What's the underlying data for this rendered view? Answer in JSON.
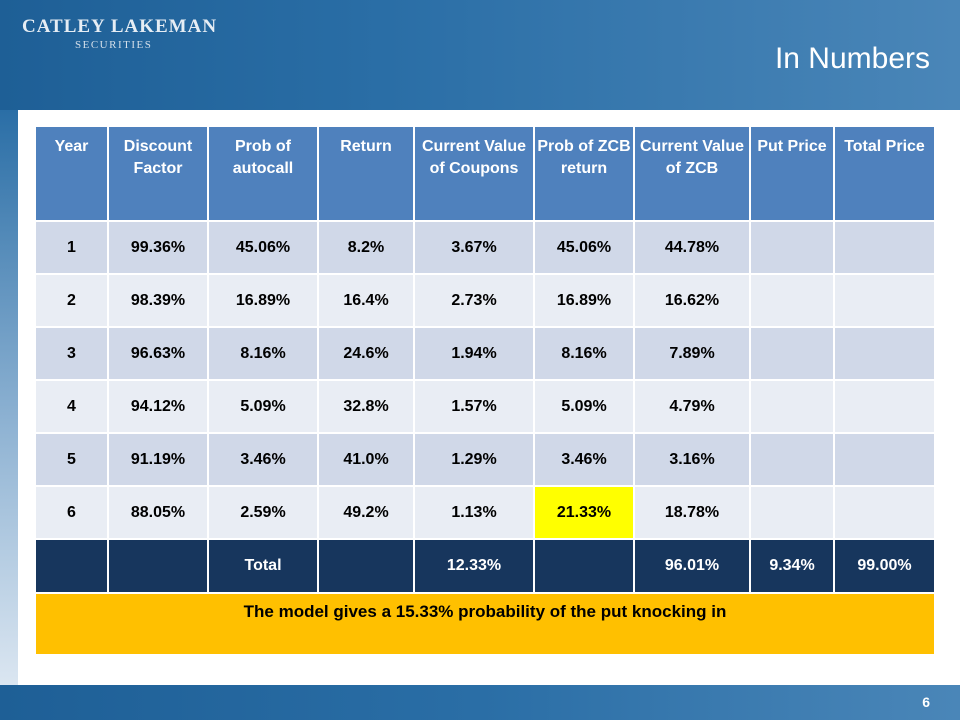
{
  "header": {
    "logo_main": "CATLEY LAKEMAN",
    "logo_sub": "SECURITIES",
    "title": "In Numbers"
  },
  "table": {
    "columns": [
      "Year",
      "Discount Factor",
      "Prob of autocall",
      "Return",
      "Current Value of Coupons",
      "Prob of ZCB return",
      "Current Value of ZCB",
      "Put Price",
      "Total Price"
    ],
    "rows": [
      [
        "1",
        "99.36%",
        "45.06%",
        "8.2%",
        "3.67%",
        "45.06%",
        "44.78%",
        "",
        ""
      ],
      [
        "2",
        "98.39%",
        "16.89%",
        "16.4%",
        "2.73%",
        "16.89%",
        "16.62%",
        "",
        ""
      ],
      [
        "3",
        "96.63%",
        "8.16%",
        "24.6%",
        "1.94%",
        "8.16%",
        "7.89%",
        "",
        ""
      ],
      [
        "4",
        "94.12%",
        "5.09%",
        "32.8%",
        "1.57%",
        "5.09%",
        "4.79%",
        "",
        ""
      ],
      [
        "5",
        "91.19%",
        "3.46%",
        "41.0%",
        "1.29%",
        "3.46%",
        "3.16%",
        "",
        ""
      ],
      [
        "6",
        "88.05%",
        "2.59%",
        "49.2%",
        "1.13%",
        "21.33%",
        "18.78%",
        "",
        ""
      ]
    ],
    "total_row": [
      "",
      "",
      "Total",
      "",
      "12.33%",
      "",
      "96.01%",
      "9.34%",
      "99.00%"
    ],
    "note": "The model gives a 15.33% probability of the put knocking in",
    "colors": {
      "header": "#4f81bd",
      "row_dark": "#d0d8e8",
      "row_light": "#e9edf4",
      "highlight": "#ffff00",
      "total": "#17365d",
      "note": "#ffc000"
    }
  },
  "footer": {
    "page_number": "6"
  }
}
